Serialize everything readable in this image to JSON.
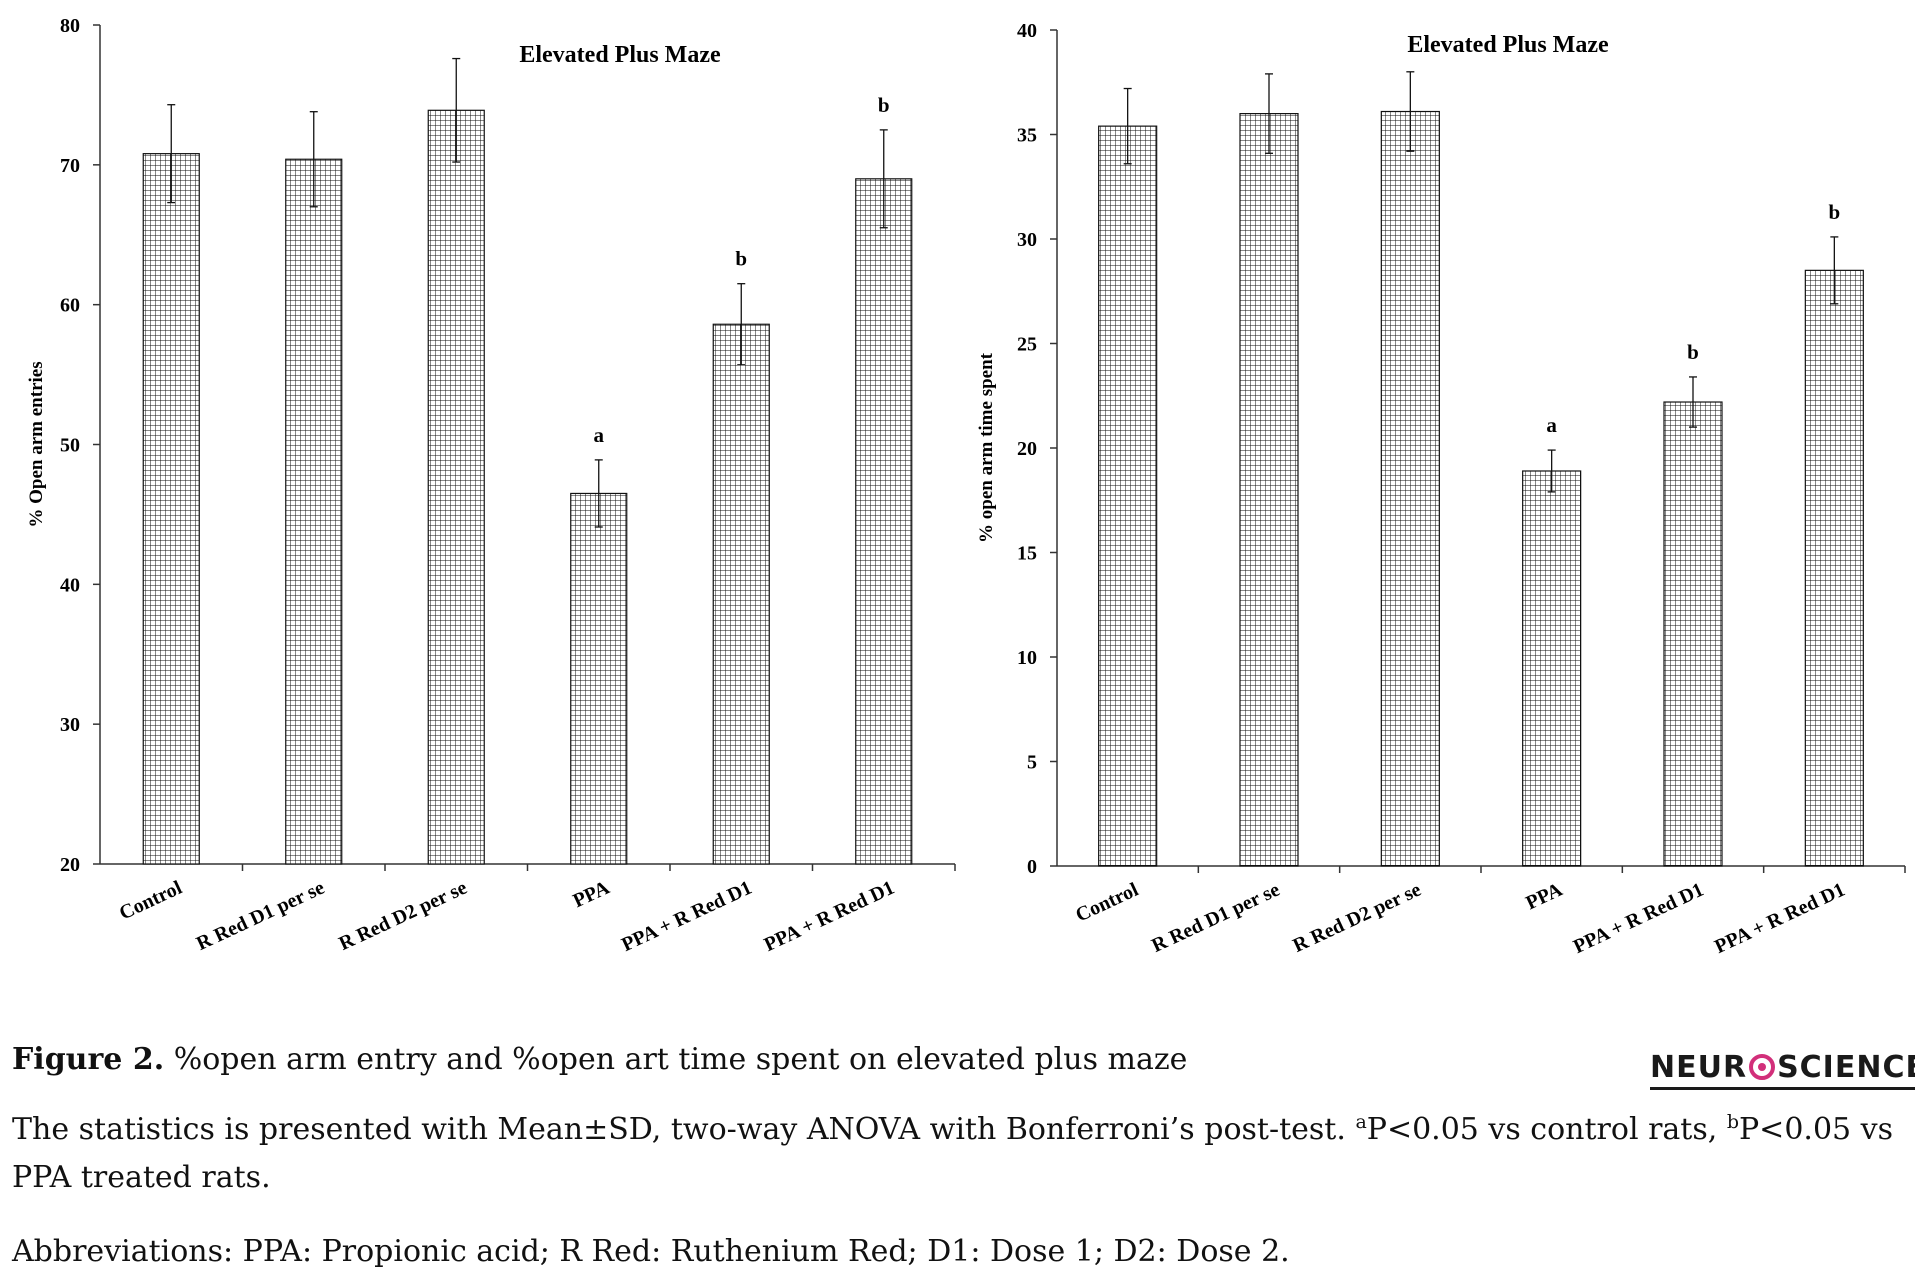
{
  "chart_data": [
    {
      "type": "bar",
      "title": "Elevated Plus Maze",
      "xlabel": "",
      "ylabel": "% Open arm entries",
      "ylim": [
        20,
        80
      ],
      "yticks": [
        20,
        30,
        40,
        50,
        60,
        70,
        80
      ],
      "grid": false,
      "categories": [
        "Control",
        "R Red D1 per se",
        "R Red D2 per se",
        "PPA",
        "PPA + R Red D1",
        "PPA + R Red D1"
      ],
      "values": [
        70.8,
        70.4,
        73.9,
        46.5,
        58.6,
        69.0
      ],
      "error": [
        3.5,
        3.4,
        3.7,
        2.4,
        2.9,
        3.5
      ],
      "significance": [
        "",
        "",
        "",
        "a",
        "b",
        "b"
      ]
    },
    {
      "type": "bar",
      "title": "Elevated Plus Maze",
      "xlabel": "",
      "ylabel": "% open arm time spent",
      "ylim": [
        0,
        40
      ],
      "yticks": [
        0,
        5,
        10,
        15,
        20,
        25,
        30,
        35,
        40
      ],
      "grid": false,
      "categories": [
        "Control",
        "R Red D1 per se",
        "R Red D2 per se",
        "PPA",
        "PPA + R Red D1",
        "PPA + R Red D1"
      ],
      "values": [
        35.4,
        36.0,
        36.1,
        18.9,
        22.2,
        28.5
      ],
      "error": [
        1.8,
        1.9,
        1.9,
        1.0,
        1.2,
        1.6
      ],
      "significance": [
        "",
        "",
        "",
        "a",
        "b",
        "b"
      ]
    }
  ],
  "caption": {
    "figure_label": "Figure 2.",
    "figure_text": "%open arm entry and %open art time spent on elevated plus maze",
    "stats_1": "The statistics is presented with Mean±SD, two-way ANOVA with Bonferroni’s post-test. ",
    "sup_a": "a",
    "stats_2": "P<0.05 vs control rats, ",
    "sup_b": "b",
    "stats_3": "P<0.05 vs PPA treated rats.",
    "abbreviations": "Abbreviations: PPA: Propionic acid; R Red: Ruthenium Red; D1: Dose 1; D2: Dose 2."
  },
  "logo": {
    "left": "NEUR",
    "right": "SCIENCE"
  }
}
